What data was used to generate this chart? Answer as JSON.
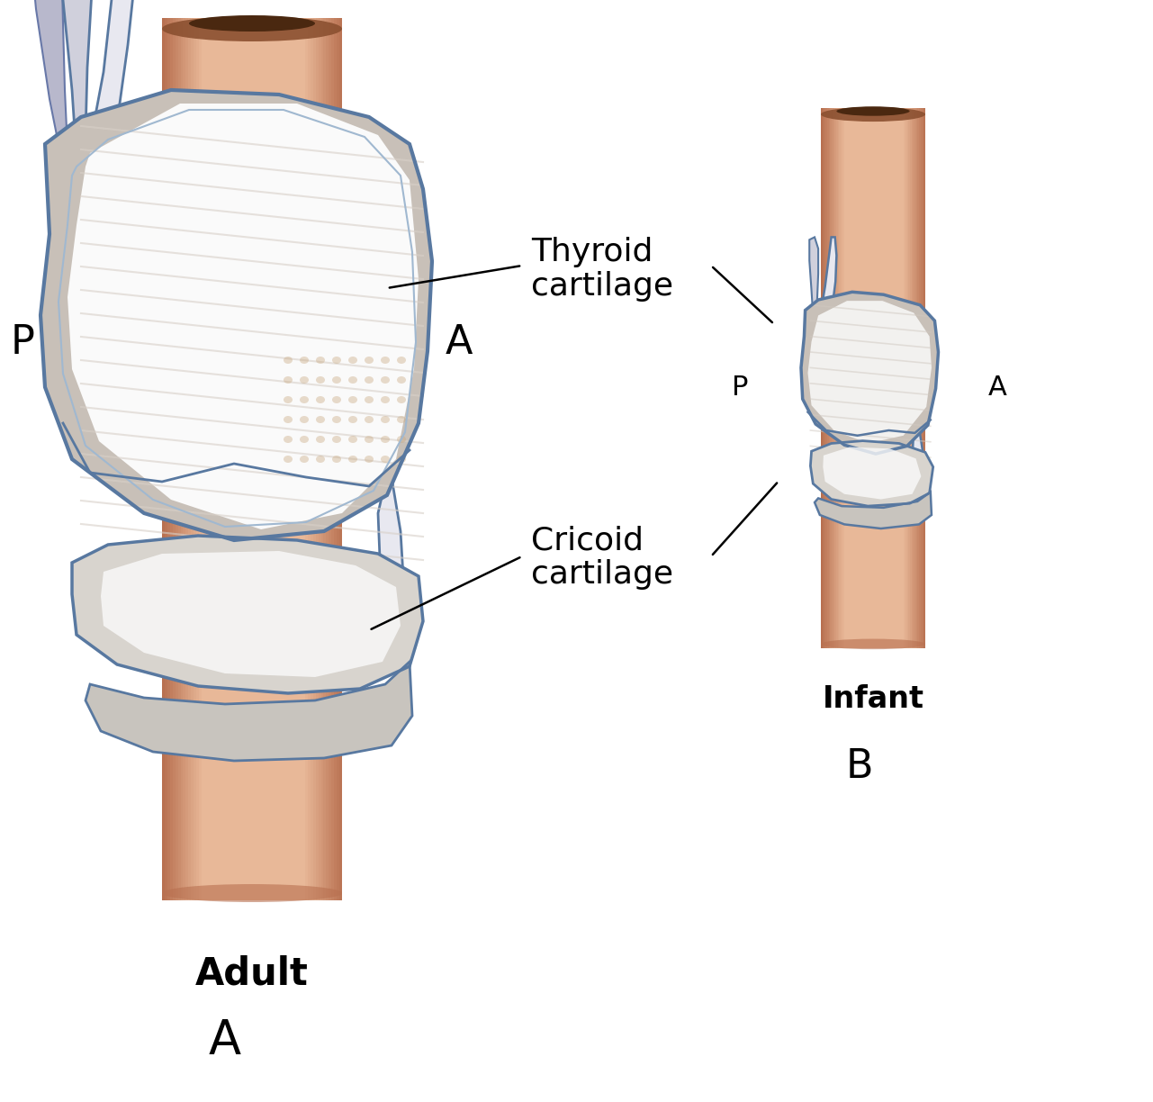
{
  "background_color": "#ffffff",
  "trachea_fill": "#D4956A",
  "trachea_light": "#E8B898",
  "trachea_dark": "#B87050",
  "trachea_rim_dark": "#8B5030",
  "cartilage_base": "#C8C0B8",
  "cartilage_light": "#F0EDE8",
  "cartilage_white": "#FAFAFA",
  "cartilage_shadow": "#A09888",
  "cartilage_tan": "#C8A880",
  "outline_blue": "#5878A0",
  "outline_dark": "#3858A0",
  "horn_fill": "#D0D0DC",
  "horn_light": "#E8E8F0",
  "label_thyroid_line1": "Thyroid",
  "label_thyroid_line2": "cartilage",
  "label_cricoid_line1": "Cricoid",
  "label_cricoid_line2": "cartilage",
  "label_adult": "Adult",
  "label_infant": "Infant",
  "label_A_main": "A",
  "label_B_main": "B",
  "figsize": [
    12.81,
    12.24
  ],
  "dpi": 100
}
